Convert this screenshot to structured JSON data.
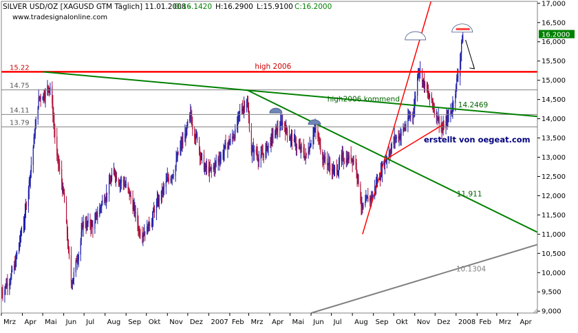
{
  "header": {
    "title": "SILVER USD/OZ [XAGUSD GTM  Täglich] 11.01.2008 - ",
    "open": "O:16.1420",
    "high": "H:16.2900",
    "low": "L:15.9100",
    "close": "C:16.2000",
    "source": "www.tradesignalonline.com"
  },
  "watermark": "erstellt von oegeat.com",
  "colors": {
    "background": "#ffffff",
    "bull_candle": "#1f1fa8",
    "bear_candle": "#b0103a",
    "resistance": "#ff0000",
    "trend_green": "#008000",
    "trend_gray": "#808080",
    "reference_line": "#808080",
    "close_marker": "#008000",
    "watermark": "#000080",
    "label_red": "#cc0000",
    "label_green": "#006400"
  },
  "chart_data": {
    "type": "candlestick",
    "title": "SILVER USD/OZ [XAGUSD GTM  Täglich] 11.01.2008",
    "ohlc_last": {
      "open": 16.142,
      "high": 16.29,
      "low": 15.91,
      "close": 16.2
    },
    "last_close_label": "16.2000",
    "ylim": [
      8.95,
      17.05
    ],
    "y_axis_position": "right",
    "y_ticks": [
      "9,000",
      "9,500",
      "10,000",
      "10,500",
      "11,000",
      "11,500",
      "12,000",
      "12,500",
      "13,000",
      "13,500",
      "14,000",
      "14,500",
      "15,000",
      "15,500",
      "16,000",
      "16,500",
      "17,000"
    ],
    "x_ticks": [
      "Mrz",
      "Apr",
      "Mai",
      "Jun",
      "Jul",
      "Aug",
      "Sep",
      "Okt",
      "Nov",
      "Dez",
      "2007",
      "Feb",
      "Mrz",
      "Apr",
      "Mai",
      "Jun",
      "Jul",
      "Aug",
      "Sep",
      "Okt",
      "Nov",
      "Dez",
      "2008",
      "Feb",
      "Mrz",
      "Apr"
    ],
    "x_domain": [
      "2006-03-01",
      "2008-04-30"
    ],
    "price_path": [
      [
        "2006-03-01",
        9.5
      ],
      [
        "2006-03-20",
        10.1
      ],
      [
        "2006-04-05",
        11.5
      ],
      [
        "2006-04-15",
        13.0
      ],
      [
        "2006-04-25",
        14.5
      ],
      [
        "2006-05-12",
        14.9
      ],
      [
        "2006-05-22",
        13.0
      ],
      [
        "2006-06-01",
        12.0
      ],
      [
        "2006-06-12",
        9.7
      ],
      [
        "2006-06-20",
        10.3
      ],
      [
        "2006-06-30",
        11.3
      ],
      [
        "2006-07-15",
        11.2
      ],
      [
        "2006-07-31",
        12.0
      ],
      [
        "2006-08-15",
        12.6
      ],
      [
        "2006-08-31",
        12.3
      ],
      [
        "2006-09-12",
        11.7
      ],
      [
        "2006-09-20",
        11.1
      ],
      [
        "2006-10-03",
        11.2
      ],
      [
        "2006-10-20",
        11.9
      ],
      [
        "2006-11-10",
        12.7
      ],
      [
        "2006-11-28",
        13.6
      ],
      [
        "2006-12-05",
        14.0
      ],
      [
        "2006-12-15",
        13.5
      ],
      [
        "2006-12-25",
        12.7
      ],
      [
        "2007-01-05",
        12.6
      ],
      [
        "2007-01-20",
        13.1
      ],
      [
        "2007-02-05",
        13.5
      ],
      [
        "2007-02-26",
        14.6
      ],
      [
        "2007-03-05",
        13.2
      ],
      [
        "2007-03-20",
        13.0
      ],
      [
        "2007-04-05",
        13.5
      ],
      [
        "2007-04-20",
        13.9
      ],
      [
        "2007-05-10",
        13.3
      ],
      [
        "2007-05-25",
        13.0
      ],
      [
        "2007-06-05",
        13.8
      ],
      [
        "2007-06-20",
        13.0
      ],
      [
        "2007-07-05",
        12.6
      ],
      [
        "2007-07-20",
        13.0
      ],
      [
        "2007-08-05",
        13.0
      ],
      [
        "2007-08-16",
        11.6
      ],
      [
        "2007-08-30",
        12.0
      ],
      [
        "2007-09-15",
        12.8
      ],
      [
        "2007-09-30",
        13.4
      ],
      [
        "2007-10-15",
        13.7
      ],
      [
        "2007-10-30",
        14.2
      ],
      [
        "2007-11-07",
        15.4
      ],
      [
        "2007-11-20",
        14.6
      ],
      [
        "2007-12-05",
        14.1
      ],
      [
        "2007-12-12",
        13.7
      ],
      [
        "2007-12-25",
        14.2
      ],
      [
        "2008-01-05",
        15.3
      ],
      [
        "2008-01-11",
        16.2
      ]
    ],
    "reference_levels": [
      {
        "label": "15.22",
        "value": 15.22,
        "color": "#ff0000",
        "text": "high 2006"
      },
      {
        "label": "14.75",
        "value": 14.75,
        "color": "#808080"
      },
      {
        "label": "14.11",
        "value": 14.11,
        "color": "#808080"
      },
      {
        "label": "13.79",
        "value": 13.79,
        "color": "#808080"
      }
    ],
    "trendlines": [
      {
        "name": "high2006 kommend",
        "color": "#008000",
        "from": [
          "2006-05-01",
          15.22
        ],
        "to": [
          "2008-04-30",
          14.06
        ],
        "value_label": "14.2469"
      },
      {
        "name": "green-falling",
        "color": "#008000",
        "from": [
          "2007-02-26",
          14.75
        ],
        "to": [
          "2008-04-30",
          11.05
        ],
        "value_label": "11.911"
      },
      {
        "name": "gray-support",
        "color": "#808080",
        "from": [
          "2007-06-01",
          8.95
        ],
        "to": [
          "2008-04-30",
          10.73
        ],
        "value_label": "10.1304"
      },
      {
        "name": "red-channel",
        "color": "#ff0000",
        "from": [
          "2007-08-16",
          11.0
        ],
        "to": [
          "2007-11-25",
          17.05
        ]
      },
      {
        "name": "red-lower",
        "color": "#ff0000",
        "from": [
          "2007-09-20",
          12.95
        ],
        "to": [
          "2007-12-13",
          13.85
        ]
      }
    ],
    "annotations": [
      {
        "text": "high 2006",
        "x": "2007-03-10",
        "y": 15.3,
        "color": "#cc0000"
      },
      {
        "text": "high2006 kommend",
        "x": "2007-06-25",
        "y": 14.45,
        "color": "#006400"
      },
      {
        "text": "14.2469",
        "x": "2008-01-04",
        "y": 14.3,
        "color": "#006400"
      },
      {
        "text": "11.911",
        "x": "2008-01-02",
        "y": 11.98,
        "color": "#006400"
      },
      {
        "text": "10.1304",
        "x": "2008-01-01",
        "y": 10.03,
        "color": "#808080"
      }
    ],
    "markers": [
      {
        "type": "dome",
        "x": "2007-04-10",
        "y": 14.15,
        "color": "#6f86b6"
      },
      {
        "type": "dome",
        "x": "2007-06-06",
        "y": 13.85,
        "color": "#6f86b6"
      },
      {
        "type": "dome",
        "x": "2007-11-02",
        "y": 16.05,
        "color": "#ffffff"
      },
      {
        "type": "dome",
        "x": "2008-01-10",
        "y": 16.25,
        "color": "#ffffff"
      }
    ],
    "grid": false,
    "legend": "none"
  }
}
